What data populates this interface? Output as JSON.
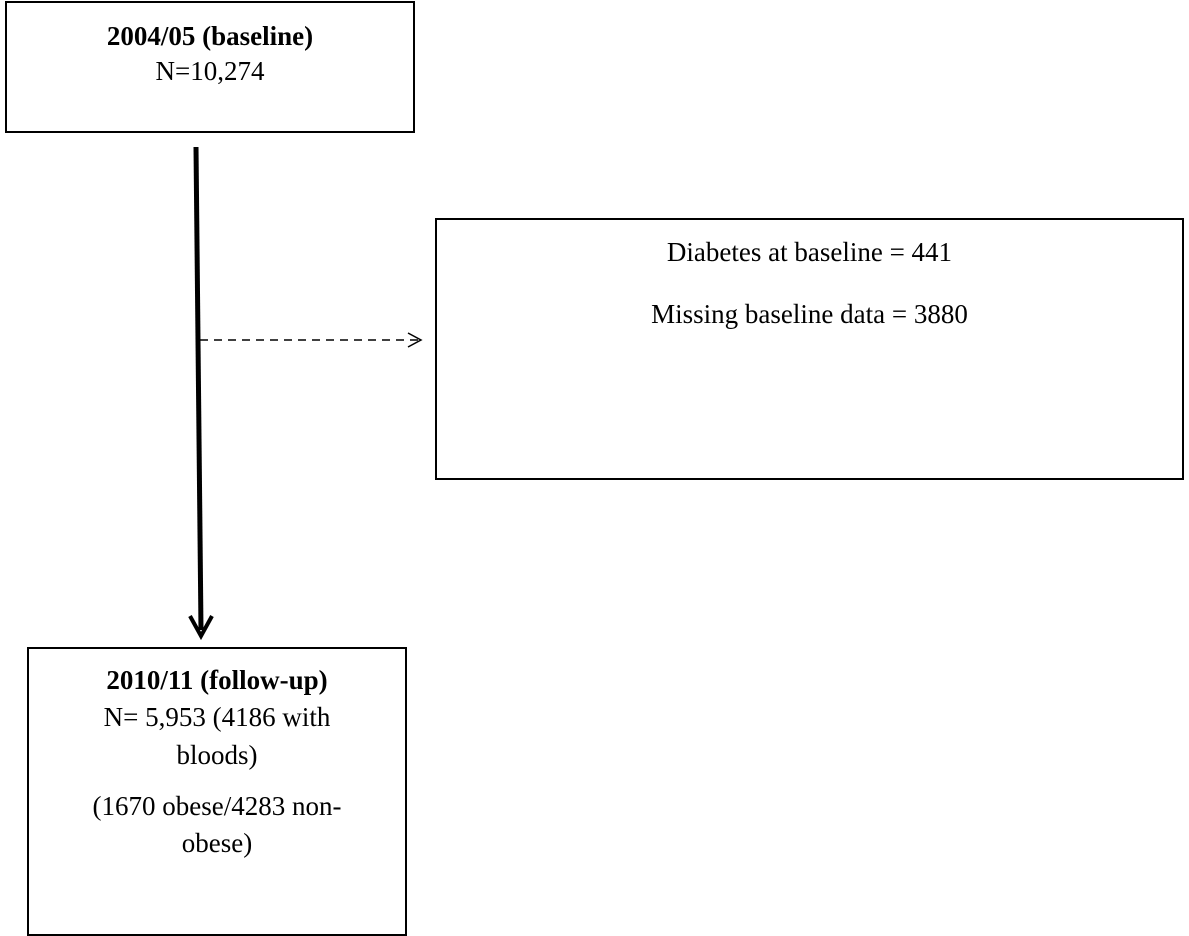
{
  "baseline_box": {
    "title": "2004/05 (baseline)",
    "count": "N=10,274"
  },
  "excluded_box": {
    "line1": "Diabetes at baseline = 441",
    "line2": "Missing baseline data = 3880"
  },
  "followup_box": {
    "title": "2010/11 (follow-up)",
    "count_line1": "N= 5,953 (4186 with",
    "count_line2": "bloods)",
    "split_line1": "(1670 obese/4283 non-",
    "split_line2": "obese)"
  }
}
